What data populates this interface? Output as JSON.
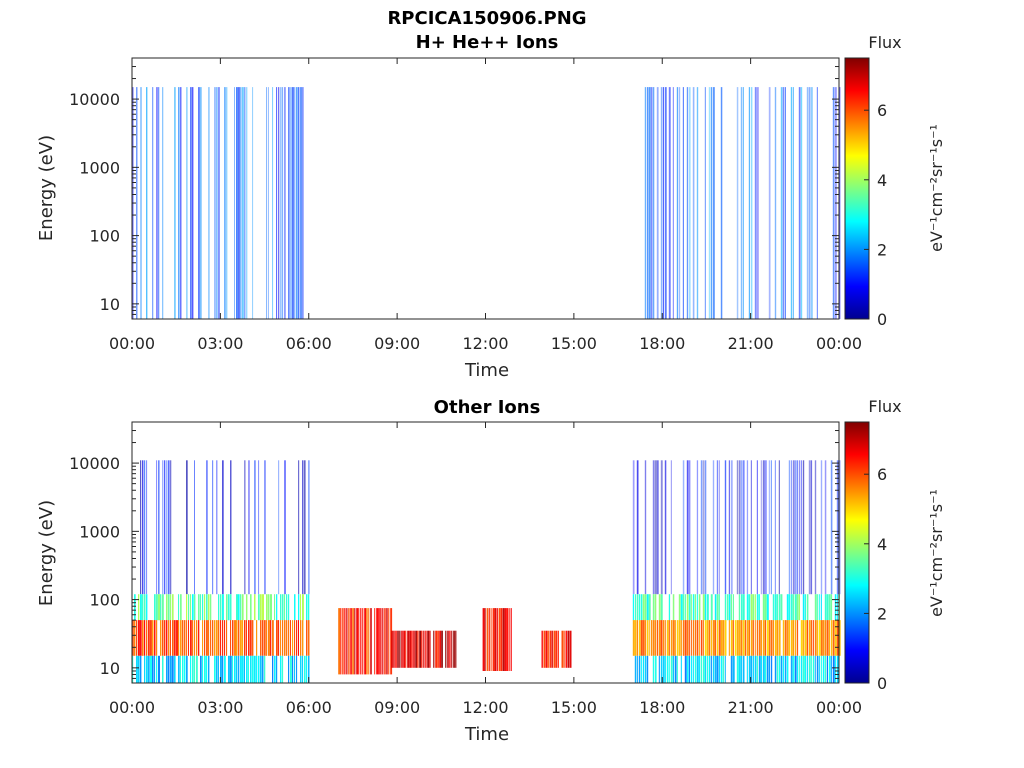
{
  "figure_title": "RPCICA150906.PNG",
  "colors": {
    "colormap": [
      "#00008f",
      "#0000ff",
      "#0080ff",
      "#00ffff",
      "#80ff80",
      "#ffff00",
      "#ff8000",
      "#ff0000",
      "#800000"
    ]
  },
  "chart_data": [
    {
      "type": "heatmap",
      "title": "H+ He++ Ions",
      "xlabel": "Time",
      "ylabel": "Energy (eV)",
      "x_ticks": [
        "00:00",
        "03:00",
        "06:00",
        "09:00",
        "12:00",
        "15:00",
        "18:00",
        "21:00",
        "00:00"
      ],
      "x_range_hours": [
        0,
        24
      ],
      "y_scale": "log",
      "y_ticks": [
        "10",
        "100",
        "1000",
        "10000"
      ],
      "y_range": [
        6,
        40000
      ],
      "colorbar": {
        "title": "Flux",
        "label": "eV⁻¹cm⁻²sr⁻¹s⁻¹",
        "ticks": [
          "0",
          "2",
          "4",
          "6"
        ],
        "range": [
          0,
          7.5
        ]
      },
      "data_intervals_hours": [
        [
          0,
          6
        ],
        [
          17,
          24
        ]
      ],
      "regions": [
        {
          "t": [
            0,
            6
          ],
          "e": [
            6,
            15000
          ],
          "flux_level": 1.5
        },
        {
          "t": [
            17,
            24
          ],
          "e": [
            6,
            15000
          ],
          "flux_level": 1.6
        }
      ]
    },
    {
      "type": "heatmap",
      "title": "Other Ions",
      "xlabel": "Time",
      "ylabel": "Energy (eV)",
      "x_ticks": [
        "00:00",
        "03:00",
        "06:00",
        "09:00",
        "12:00",
        "15:00",
        "18:00",
        "21:00",
        "00:00"
      ],
      "x_range_hours": [
        0,
        24
      ],
      "y_scale": "log",
      "y_ticks": [
        "10",
        "100",
        "1000",
        "10000"
      ],
      "y_range": [
        6,
        40000
      ],
      "colorbar": {
        "title": "Flux",
        "label": "eV⁻¹cm⁻²sr⁻¹s⁻¹",
        "ticks": [
          "0",
          "2",
          "4",
          "6"
        ],
        "range": [
          0,
          7.5
        ]
      },
      "data_intervals_hours": [
        [
          0,
          6
        ],
        [
          7,
          8.8
        ],
        [
          8.8,
          11
        ],
        [
          11.9,
          12.9
        ],
        [
          13.9,
          14.9
        ],
        [
          17,
          24
        ]
      ],
      "regions": [
        {
          "t": [
            0,
            6
          ],
          "e": [
            120,
            11000
          ],
          "flux_level": 0.8
        },
        {
          "t": [
            0,
            6
          ],
          "e": [
            50,
            120
          ],
          "flux_level": 3.5
        },
        {
          "t": [
            0,
            6
          ],
          "e": [
            15,
            50
          ],
          "flux_level": 6.0
        },
        {
          "t": [
            0,
            6
          ],
          "e": [
            6,
            15
          ],
          "flux_level": 2.5
        },
        {
          "t": [
            7,
            8.8
          ],
          "e": [
            8,
            75
          ],
          "flux_level": 6.3
        },
        {
          "t": [
            8.8,
            11
          ],
          "e": [
            10,
            35
          ],
          "flux_level": 6.8
        },
        {
          "t": [
            11.9,
            12.9
          ],
          "e": [
            9,
            75
          ],
          "flux_level": 6.5
        },
        {
          "t": [
            13.9,
            14.9
          ],
          "e": [
            10,
            35
          ],
          "flux_level": 6.5
        },
        {
          "t": [
            17,
            24
          ],
          "e": [
            120,
            11000
          ],
          "flux_level": 0.8
        },
        {
          "t": [
            17,
            24
          ],
          "e": [
            50,
            120
          ],
          "flux_level": 3.3
        },
        {
          "t": [
            17,
            24
          ],
          "e": [
            15,
            50
          ],
          "flux_level": 5.5
        },
        {
          "t": [
            17,
            24
          ],
          "e": [
            6,
            15
          ],
          "flux_level": 2.5
        }
      ]
    }
  ]
}
